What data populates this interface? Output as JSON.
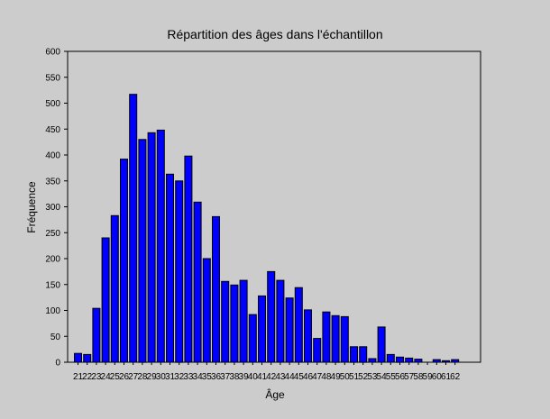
{
  "chart_data": {
    "type": "bar",
    "title": "Répartition des âges dans l'échantillon",
    "xlabel": "Âge",
    "ylabel": "Fréquence",
    "ylim": [
      0,
      600
    ],
    "y_ticks": [
      0,
      50,
      100,
      150,
      200,
      250,
      300,
      350,
      400,
      450,
      500,
      550,
      600
    ],
    "categories": [
      "21",
      "22",
      "23",
      "24",
      "25",
      "26",
      "27",
      "28",
      "29",
      "30",
      "31",
      "32",
      "33",
      "34",
      "35",
      "36",
      "37",
      "38",
      "39",
      "40",
      "41",
      "42",
      "43",
      "44",
      "45",
      "46",
      "47",
      "48",
      "49",
      "50",
      "51",
      "52",
      "53",
      "54",
      "55",
      "56",
      "57",
      "58",
      "59",
      "60",
      "61",
      "62"
    ],
    "values": [
      17,
      15,
      104,
      240,
      283,
      392,
      517,
      430,
      443,
      448,
      363,
      350,
      398,
      309,
      200,
      281,
      156,
      149,
      158,
      92,
      128,
      175,
      158,
      124,
      144,
      101,
      46,
      97,
      90,
      88,
      30,
      30,
      7,
      68,
      15,
      10,
      8,
      6,
      0,
      5,
      3,
      5
    ],
    "grid": false,
    "colors": {
      "bar_fill": "#0000ff",
      "bar_stroke": "#000000",
      "background": "#cccccc"
    }
  }
}
